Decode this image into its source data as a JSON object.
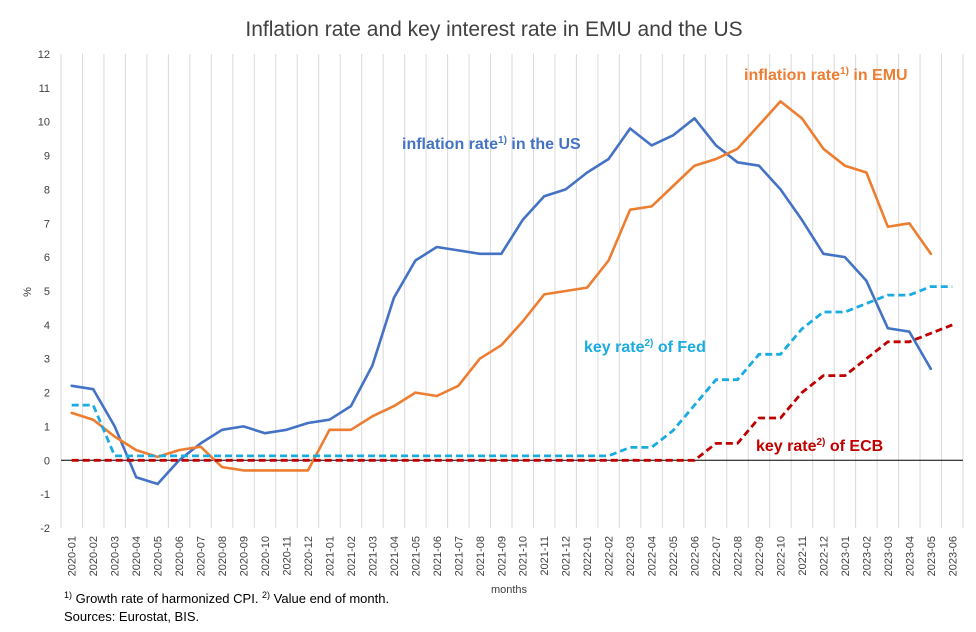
{
  "chart_data": {
    "type": "line",
    "title": "Inflation rate and key interest rate in EMU and the US",
    "xlabel": "months",
    "ylabel": "%",
    "ylim": [
      -2,
      12
    ],
    "y_ticks": [
      -2,
      -1,
      0,
      1,
      2,
      3,
      4,
      5,
      6,
      7,
      8,
      9,
      10,
      11,
      12
    ],
    "grid": "vertical",
    "categories": [
      "2020-01",
      "2020-02",
      "2020-03",
      "2020-04",
      "2020-05",
      "2020-06",
      "2020-07",
      "2020-08",
      "2020-09",
      "2020-10",
      "2020-11",
      "2020-12",
      "2021-01",
      "2021-02",
      "2021-03",
      "2021-04",
      "2021-05",
      "2021-06",
      "2021-07",
      "2021-08",
      "2021-09",
      "2021-10",
      "2021-11",
      "2021-12",
      "2022-01",
      "2022-02",
      "2022-03",
      "2022-04",
      "2022-05",
      "2022-06",
      "2022-07",
      "2022-08",
      "2022-09",
      "2022-10",
      "2022-11",
      "2022-12",
      "2023-01",
      "2023-02",
      "2023-03",
      "2023-04",
      "2023-05",
      "2023-06"
    ],
    "series": [
      {
        "key": "us_inflation",
        "name": "inflation rate",
        "sup": "1)",
        "suffix": " in the US",
        "color": "#4472c4",
        "dashed": false,
        "values": [
          2.2,
          2.1,
          1.0,
          -0.5,
          -0.7,
          0.0,
          0.5,
          0.9,
          1.0,
          0.8,
          0.9,
          1.1,
          1.2,
          1.6,
          2.8,
          4.8,
          5.9,
          6.3,
          6.2,
          6.1,
          6.1,
          7.1,
          7.8,
          8.0,
          8.5,
          8.9,
          9.8,
          9.3,
          9.6,
          10.1,
          9.3,
          8.8,
          8.7,
          8.0,
          7.1,
          6.1,
          6.0,
          5.3,
          3.9,
          3.8,
          2.7,
          null
        ]
      },
      {
        "key": "emu_inflation",
        "name": "inflation rate",
        "sup": "1)",
        "suffix": " in EMU",
        "color": "#ed7d31",
        "dashed": false,
        "values": [
          1.4,
          1.2,
          0.7,
          0.3,
          0.1,
          0.3,
          0.4,
          -0.2,
          -0.3,
          -0.3,
          -0.3,
          -0.3,
          0.9,
          0.9,
          1.3,
          1.6,
          2.0,
          1.9,
          2.2,
          3.0,
          3.4,
          4.1,
          4.9,
          5.0,
          5.1,
          5.9,
          7.4,
          7.5,
          8.1,
          8.7,
          8.9,
          9.2,
          9.9,
          10.6,
          10.1,
          9.2,
          8.7,
          8.5,
          6.9,
          7.0,
          6.1,
          null
        ]
      },
      {
        "key": "fed_rate",
        "name": "key rate",
        "sup": "2)",
        "suffix": " of Fed",
        "color": "#1aabe0",
        "dashed": true,
        "values": [
          1.63,
          1.63,
          0.13,
          0.13,
          0.13,
          0.13,
          0.13,
          0.13,
          0.13,
          0.13,
          0.13,
          0.13,
          0.13,
          0.13,
          0.13,
          0.13,
          0.13,
          0.13,
          0.13,
          0.13,
          0.13,
          0.13,
          0.13,
          0.13,
          0.13,
          0.13,
          0.38,
          0.38,
          0.88,
          1.63,
          2.38,
          2.38,
          3.13,
          3.13,
          3.88,
          4.38,
          4.38,
          4.63,
          4.88,
          4.88,
          5.13,
          5.13
        ]
      },
      {
        "key": "ecb_rate",
        "name": "key rate",
        "sup": "2)",
        "suffix": " of ECB",
        "color": "#c00000",
        "dashed": true,
        "values": [
          0,
          0,
          0,
          0,
          0,
          0,
          0,
          0,
          0,
          0,
          0,
          0,
          0,
          0,
          0,
          0,
          0,
          0,
          0,
          0,
          0,
          0,
          0,
          0,
          0,
          0,
          0,
          0,
          0,
          0,
          0.5,
          0.5,
          1.25,
          1.25,
          2.0,
          2.5,
          2.5,
          3.0,
          3.5,
          3.5,
          3.75,
          4.0
        ]
      }
    ],
    "footnote": {
      "line1": [
        {
          "sup": "1)",
          "text": " Growth rate of harmonized CPI. "
        },
        {
          "sup": "2)",
          "text": " Value end of month."
        }
      ],
      "line2": "Sources: Eurostat, BIS."
    }
  }
}
